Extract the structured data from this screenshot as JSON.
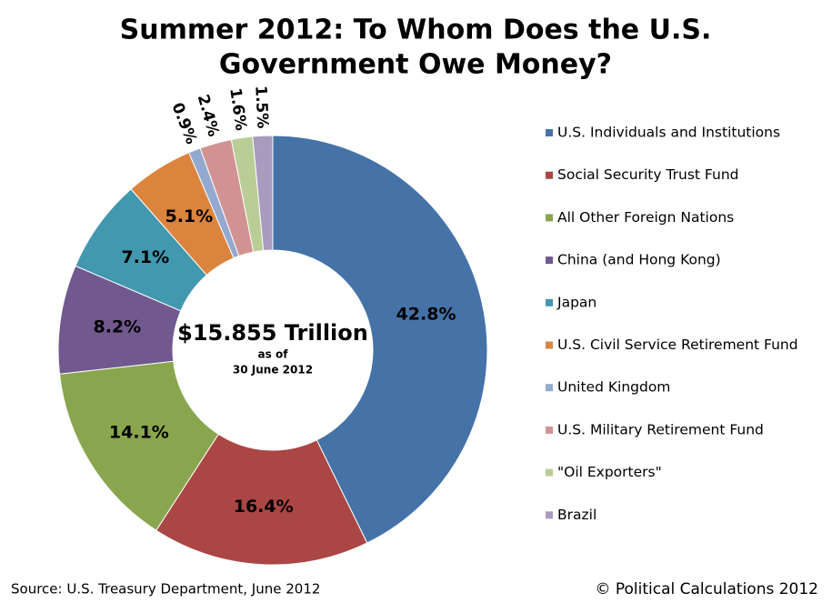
{
  "chart_data": {
    "type": "donut",
    "title": [
      "Summer 2012: To Whom Does the U.S.",
      "Government Owe Money?"
    ],
    "center_text": [
      "$15.855 Trillion",
      "as of",
      "30 June 2012"
    ],
    "categories": [
      "U.S. Individuals and Institutions",
      "Social Security Trust Fund",
      "All Other Foreign Nations",
      "China (and Hong Kong)",
      "Japan",
      "U.S. Civil Service Retirement Fund",
      "United Kingdom",
      "U.S. Military Retirement Fund",
      "\"Oil Exporters\"",
      "Brazil"
    ],
    "values": [
      42.8,
      16.4,
      14.1,
      8.2,
      7.1,
      5.1,
      0.9,
      2.4,
      1.6,
      1.5
    ],
    "value_labels": [
      "42.8%",
      "16.4%",
      "14.1%",
      "8.2%",
      "7.1%",
      "5.1%",
      "0.9%",
      "2.4%",
      "1.6%",
      "1.5%"
    ],
    "colors": [
      "#4572a7",
      "#aa4643",
      "#89a54e",
      "#71588f",
      "#4198af",
      "#db843d",
      "#93a9cf",
      "#d19392",
      "#b9cd96",
      "#a99bbd"
    ],
    "legend": "right",
    "source": "Source: U.S. Treasury Department, June 2012",
    "credit": "© Political Calculations 2012"
  }
}
